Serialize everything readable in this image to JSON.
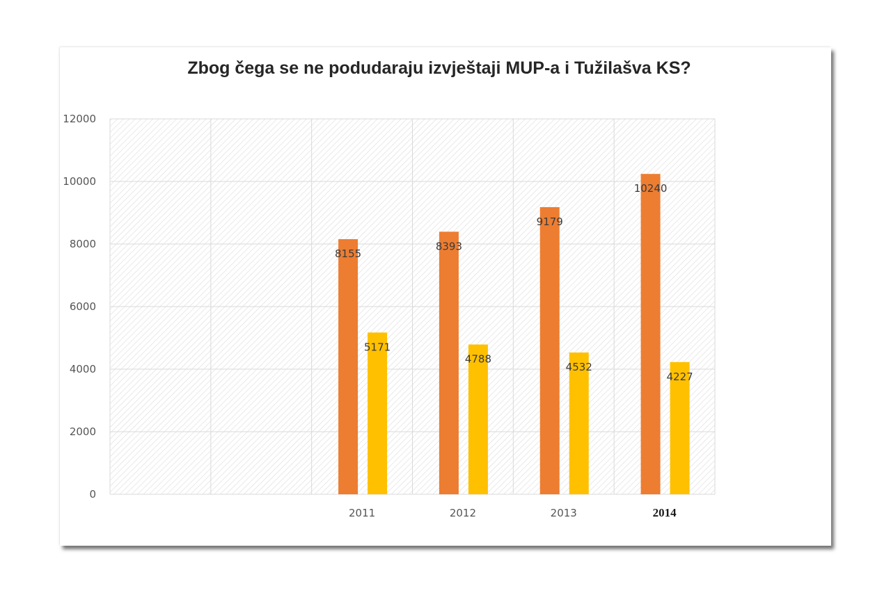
{
  "colors": {
    "series_1": "#ED7D31",
    "series_2": "#FFC000",
    "grid": "#d9d9d9",
    "plot_hatch": "#e2e2e2"
  },
  "chart_data": {
    "type": "bar",
    "title": "Zbog čega se ne podudaraju izvještaji MUP-a i Tužilašva KS?",
    "xlabel": "",
    "ylabel": "",
    "ylim": [
      0,
      12000
    ],
    "yticks": [
      "0",
      "2000",
      "4000",
      "6000",
      "8000",
      "10000",
      "12000"
    ],
    "categories": [
      "",
      "",
      "2011",
      "2012",
      "2013",
      "2014"
    ],
    "bold_categories": [
      "2014"
    ],
    "grid": true,
    "legend": "none",
    "series": [
      {
        "values": [
          null,
          null,
          8155,
          8393,
          9179,
          10240
        ],
        "labels": [
          "",
          "",
          "8155",
          "8393",
          "9179",
          "10240"
        ]
      },
      {
        "values": [
          null,
          null,
          5171,
          4788,
          4532,
          4227
        ],
        "labels": [
          "",
          "",
          "5171",
          "4788",
          "4532",
          "4227"
        ]
      }
    ]
  }
}
